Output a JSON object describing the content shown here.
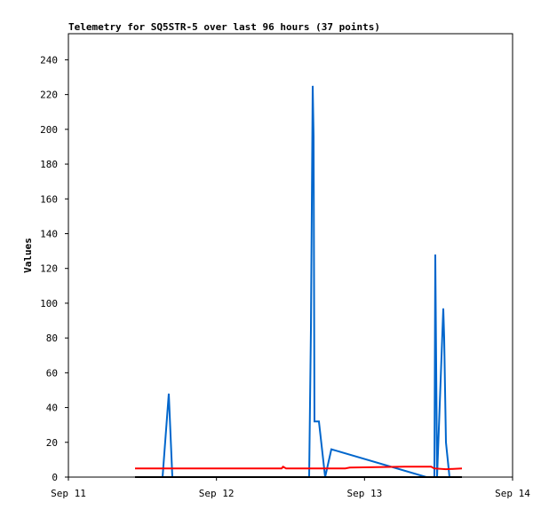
{
  "chart_data": {
    "type": "line",
    "title": "Telemetry for SQ5STR-5 over last 96 hours (37 points)",
    "y_label": "Values",
    "xlim": [
      11,
      14
    ],
    "xticks": [
      {
        "value": 11,
        "label": "Sep 11"
      },
      {
        "value": 12,
        "label": "Sep 12"
      },
      {
        "value": 13,
        "label": "Sep 13"
      },
      {
        "value": 14,
        "label": "Sep 14"
      }
    ],
    "ylim": [
      0,
      255
    ],
    "yticks": [
      0,
      20,
      40,
      60,
      80,
      100,
      120,
      140,
      160,
      180,
      200,
      220,
      240
    ],
    "series": [
      {
        "color": "#0066cc",
        "x": [
          11.636,
          11.678,
          11.702,
          12.626,
          12.638,
          12.65,
          12.656,
          12.662,
          12.692,
          12.734,
          12.776,
          13.418,
          13.472,
          13.478,
          13.49,
          13.532,
          13.538,
          13.55,
          13.574
        ],
        "values": [
          0,
          48,
          0,
          0,
          85,
          225,
          196,
          32,
          32,
          0,
          16,
          0,
          0,
          128,
          0,
          97,
          80,
          20,
          0
        ]
      },
      {
        "color": "#ff0000",
        "x": [
          11.45,
          12.44,
          12.45,
          12.47,
          12.87,
          12.9,
          13.27,
          13.45,
          13.47,
          13.55,
          13.658
        ],
        "values": [
          5,
          5,
          6,
          5,
          5,
          5.5,
          6,
          6,
          5,
          4.5,
          5
        ]
      },
      {
        "color": "#000000",
        "x": [
          11.45,
          13.658
        ],
        "values": [
          0,
          0
        ]
      }
    ]
  }
}
